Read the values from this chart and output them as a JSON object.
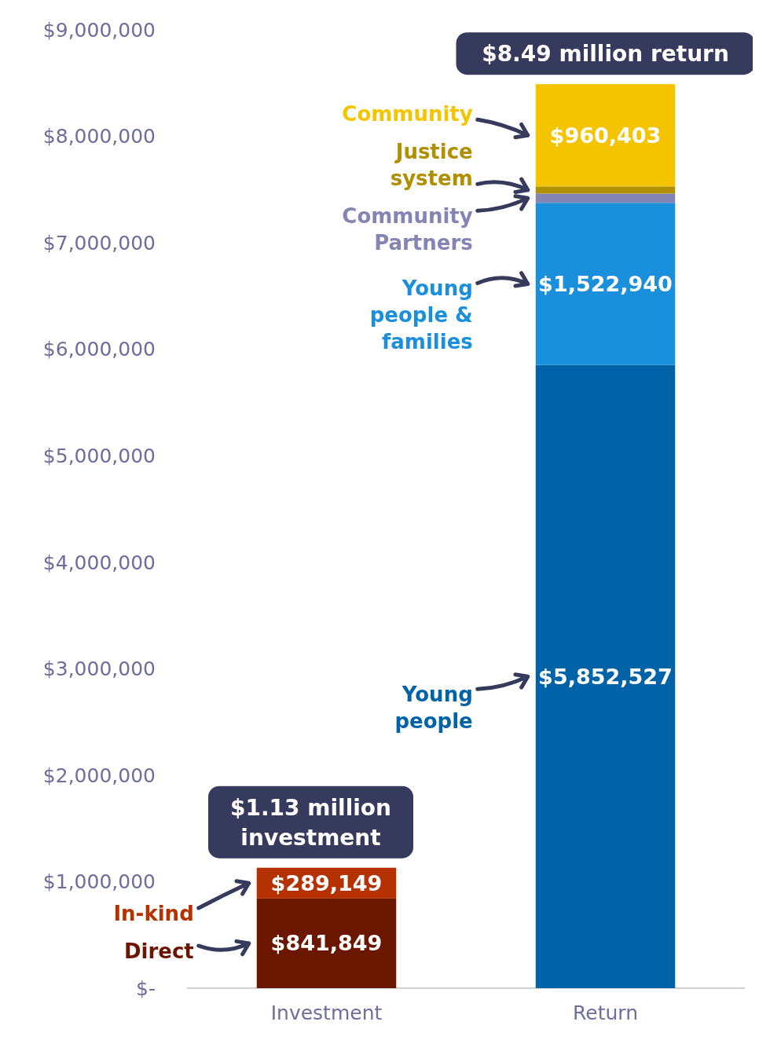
{
  "chart_data": {
    "type": "bar",
    "stacked": true,
    "grid": false,
    "categories": [
      "Investment",
      "Return"
    ],
    "series": [
      {
        "name": "Direct",
        "color": "#6b1700",
        "values": [
          841849,
          null
        ],
        "value_labels": [
          "$841,849",
          null
        ]
      },
      {
        "name": "In-kind",
        "color": "#b53200",
        "values": [
          289149,
          null
        ],
        "value_labels": [
          "$289,149",
          null
        ]
      },
      {
        "name": "Young people",
        "color": "#0063a8",
        "values": [
          null,
          5852527
        ],
        "value_labels": [
          null,
          "$5,852,527"
        ]
      },
      {
        "name": "Young people & families",
        "color": "#1a8fdc",
        "values": [
          null,
          1522940
        ],
        "value_labels": [
          null,
          "$1,522,940"
        ]
      },
      {
        "name": "Community Partners",
        "color": "#8585b5",
        "values": [
          null,
          87000
        ],
        "value_labels": [
          null,
          null
        ]
      },
      {
        "name": "Justice system",
        "color": "#b08f00",
        "values": [
          null,
          67000
        ],
        "value_labels": [
          null,
          null
        ]
      },
      {
        "name": "Community",
        "color": "#f5c400",
        "values": [
          null,
          960403
        ],
        "value_labels": [
          null,
          "$960,403"
        ]
      }
    ],
    "ylim": [
      0,
      9000000
    ],
    "yticks": [
      {
        "value": 0,
        "label": "$-"
      },
      {
        "value": 1000000,
        "label": "$1,000,000"
      },
      {
        "value": 2000000,
        "label": "$2,000,000"
      },
      {
        "value": 3000000,
        "label": "$3,000,000"
      },
      {
        "value": 4000000,
        "label": "$4,000,000"
      },
      {
        "value": 5000000,
        "label": "$5,000,000"
      },
      {
        "value": 6000000,
        "label": "$6,000,000"
      },
      {
        "value": 7000000,
        "label": "$7,000,000"
      },
      {
        "value": 8000000,
        "label": "$8,000,000"
      },
      {
        "value": 9000000,
        "label": "$9,000,000"
      }
    ],
    "annotations": [
      {
        "text": "$1.13 million investment",
        "x": "Investment",
        "y": 1130998
      },
      {
        "text": "$8.49 million return",
        "x": "Return",
        "y": 8490000
      }
    ]
  }
}
